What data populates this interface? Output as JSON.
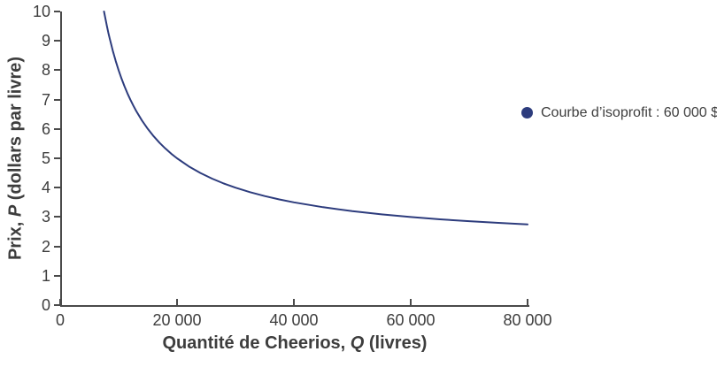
{
  "colors": {
    "curve": "#2d3c7d",
    "axis": "#4a4a4a",
    "text": "#3d3d3d",
    "background": "#ffffff"
  },
  "legend": {
    "marker": "dot",
    "marker_color": "#2d3c7d",
    "label": "Courbe d’isoprofit : 60 000 $"
  },
  "axes": {
    "x_title": {
      "pre": "Quantité de Cheerios, ",
      "var": "Q",
      "post": " (livres)"
    },
    "y_title": {
      "pre": "Prix, ",
      "var": "P",
      "post": " (dollars par livre)"
    }
  },
  "chart_data": {
    "type": "line",
    "title": "",
    "xlabel": "Quantité de Cheerios, Q (livres)",
    "ylabel": "Prix, P (dollars par livre)",
    "xlim": [
      0,
      80000
    ],
    "ylim": [
      0,
      10
    ],
    "grid": false,
    "legend_position": "right",
    "x_ticks": {
      "values": [
        0,
        20000,
        40000,
        60000,
        80000
      ],
      "labels": [
        "0",
        "20 000",
        "40 000",
        "60 000",
        "80 000"
      ]
    },
    "y_ticks": {
      "values": [
        0,
        1,
        2,
        3,
        4,
        5,
        6,
        7,
        8,
        9,
        10
      ],
      "labels": [
        "0",
        "1",
        "2",
        "3",
        "4",
        "5",
        "6",
        "7",
        "8",
        "9",
        "10"
      ]
    },
    "series": [
      {
        "name": "Courbe d’isoprofit : 60 000 $",
        "color": "#2d3c7d",
        "points": [
          [
            7500,
            10.0
          ],
          [
            7750,
            9.742
          ],
          [
            8000,
            9.5
          ],
          [
            8250,
            9.273
          ],
          [
            8500,
            9.059
          ],
          [
            8750,
            8.857
          ],
          [
            9000,
            8.667
          ],
          [
            9500,
            8.316
          ],
          [
            10000,
            8.0
          ],
          [
            10500,
            7.714
          ],
          [
            11000,
            7.455
          ],
          [
            11500,
            7.217
          ],
          [
            12000,
            7.0
          ],
          [
            12500,
            6.8
          ],
          [
            13000,
            6.615
          ],
          [
            14000,
            6.286
          ],
          [
            15000,
            6.0
          ],
          [
            16000,
            5.75
          ],
          [
            17000,
            5.529
          ],
          [
            18000,
            5.333
          ],
          [
            19000,
            5.158
          ],
          [
            20000,
            5.0
          ],
          [
            22000,
            4.727
          ],
          [
            24000,
            4.5
          ],
          [
            26000,
            4.308
          ],
          [
            28000,
            4.143
          ],
          [
            30000,
            4.0
          ],
          [
            32500,
            3.846
          ],
          [
            35000,
            3.714
          ],
          [
            37500,
            3.6
          ],
          [
            40000,
            3.5
          ],
          [
            45000,
            3.333
          ],
          [
            50000,
            3.2
          ],
          [
            55000,
            3.091
          ],
          [
            60000,
            3.0
          ],
          [
            65000,
            2.923
          ],
          [
            70000,
            2.857
          ],
          [
            75000,
            2.8
          ],
          [
            80000,
            2.75
          ]
        ]
      }
    ]
  }
}
